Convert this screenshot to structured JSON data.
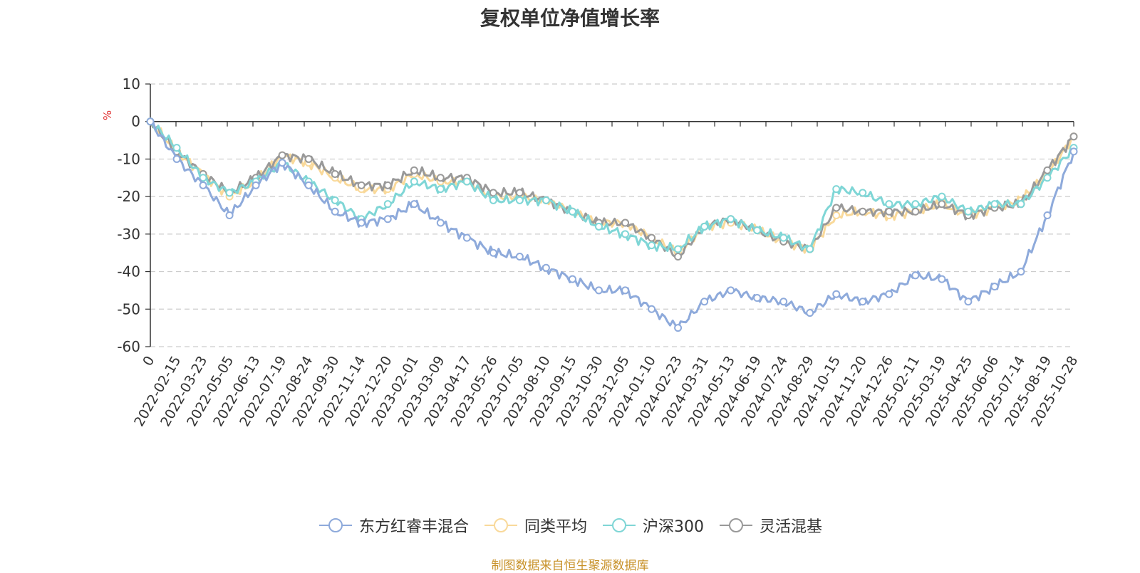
{
  "chart_data": {
    "type": "line",
    "title": "复权单位净值增长率",
    "ylabel": "%",
    "ylim": [
      -60,
      10
    ],
    "yticks": [
      10,
      0,
      -10,
      -20,
      -30,
      -40,
      -50,
      -60
    ],
    "grid": true,
    "legend_position": "bottom",
    "categories": [
      "0",
      "2022-02-15",
      "2022-03-23",
      "2022-05-05",
      "2022-06-13",
      "2022-07-19",
      "2022-08-24",
      "2022-09-30",
      "2022-11-14",
      "2022-12-20",
      "2023-02-01",
      "2023-03-09",
      "2023-04-17",
      "2023-05-26",
      "2023-07-05",
      "2023-08-10",
      "2023-09-15",
      "2023-10-30",
      "2023-12-05",
      "2024-01-10",
      "2024-02-23",
      "2024-03-31",
      "2024-05-13",
      "2024-06-19",
      "2024-07-24",
      "2024-08-29",
      "2024-10-15",
      "2024-11-20",
      "2024-12-26",
      "2025-02-11",
      "2025-03-19",
      "2025-04-25",
      "2025-06-06",
      "2025-07-14",
      "2025-08-19",
      "2025-10-28"
    ],
    "series": [
      {
        "name": "东方红睿丰混合",
        "color": "#8eaadb",
        "values": [
          0,
          -10,
          -17,
          -25,
          -17,
          -11,
          -17,
          -24,
          -27,
          -26,
          -22,
          -27,
          -31,
          -35,
          -36,
          -39,
          -42,
          -45,
          -45,
          -50,
          -55,
          -48,
          -45,
          -47,
          -48,
          -51,
          -46,
          -48,
          -46,
          -41,
          -42,
          -48,
          -44,
          -40,
          -25,
          -8
        ]
      },
      {
        "name": "同类平均",
        "color": "#f9d99a",
        "values": [
          0,
          -8,
          -14,
          -20,
          -16,
          -9,
          -11,
          -15,
          -18,
          -18,
          -14,
          -16,
          -16,
          -20,
          -20,
          -21,
          -24,
          -27,
          -27,
          -31,
          -35,
          -28,
          -27,
          -29,
          -32,
          -34,
          -25,
          -24,
          -25,
          -24,
          -22,
          -25,
          -23,
          -21,
          -14,
          -4
        ]
      },
      {
        "name": "沪深300",
        "color": "#7fd6d6",
        "values": [
          0,
          -7,
          -15,
          -19,
          -16,
          -11,
          -16,
          -21,
          -26,
          -22,
          -16,
          -18,
          -16,
          -21,
          -21,
          -21,
          -24,
          -28,
          -30,
          -33,
          -34,
          -28,
          -26,
          -29,
          -31,
          -34,
          -18,
          -19,
          -22,
          -22,
          -20,
          -24,
          -22,
          -22,
          -15,
          -7
        ]
      },
      {
        "name": "灵活混基",
        "color": "#999999",
        "values": [
          0,
          -8,
          -14,
          -19,
          -15,
          -9,
          -10,
          -14,
          -17,
          -17,
          -13,
          -15,
          -15,
          -19,
          -19,
          -21,
          -24,
          -27,
          -27,
          -31,
          -36,
          -28,
          -26,
          -29,
          -32,
          -34,
          -23,
          -24,
          -24,
          -24,
          -22,
          -25,
          -23,
          -22,
          -13,
          -4
        ]
      }
    ]
  },
  "source_note": "制图数据来自恒生聚源数据库"
}
